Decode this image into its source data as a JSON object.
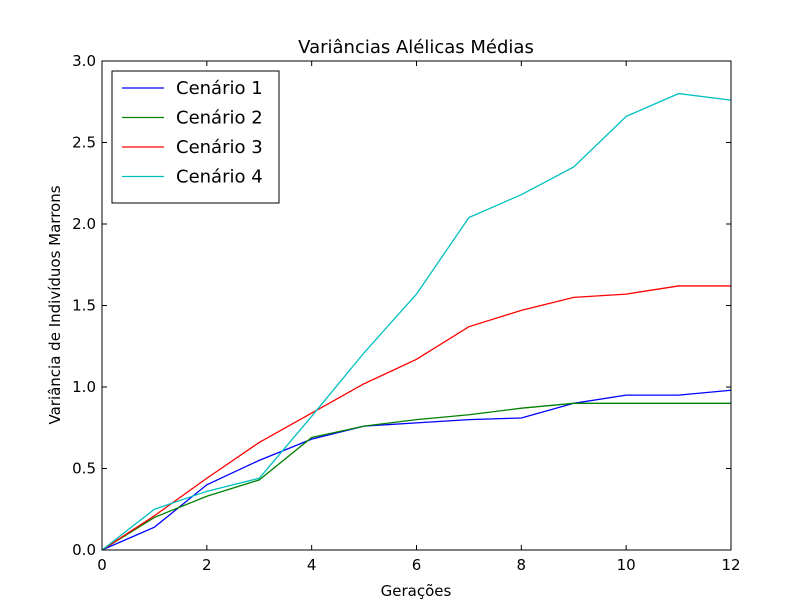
{
  "chart_data": {
    "type": "line",
    "title": "Variâncias Alélicas Médias",
    "xlabel": "Gerações",
    "ylabel": "Variância de Indivíduos Marrons",
    "xlim": [
      0,
      12
    ],
    "ylim": [
      0,
      3.0
    ],
    "xticks": [
      0,
      2,
      4,
      6,
      8,
      10,
      12
    ],
    "xtick_labels": [
      "0",
      "2",
      "4",
      "6",
      "8",
      "10",
      "12"
    ],
    "yticks": [
      0,
      0.5,
      1.0,
      1.5,
      2.0,
      2.5,
      3.0
    ],
    "ytick_labels": [
      "0.0",
      "0.5",
      "1.0",
      "1.5",
      "2.0",
      "2.5",
      "3.0"
    ],
    "grid": false,
    "legend_position": "top-left",
    "x": [
      0,
      1,
      2,
      3,
      4,
      5,
      6,
      7,
      8,
      9,
      10,
      11,
      12
    ],
    "series": [
      {
        "name": "Cenário 1",
        "color": "#0000ff",
        "values": [
          0.0,
          0.14,
          0.4,
          0.55,
          0.68,
          0.76,
          0.78,
          0.8,
          0.81,
          0.9,
          0.95,
          0.95,
          0.98
        ]
      },
      {
        "name": "Cenário 2",
        "color": "#008000",
        "values": [
          0.0,
          0.2,
          0.33,
          0.43,
          0.69,
          0.76,
          0.8,
          0.83,
          0.87,
          0.9,
          0.9,
          0.9,
          0.9
        ]
      },
      {
        "name": "Cenário 3",
        "color": "#ff0000",
        "values": [
          0.0,
          0.21,
          0.44,
          0.66,
          0.84,
          1.02,
          1.17,
          1.37,
          1.47,
          1.55,
          1.57,
          1.62,
          1.62
        ]
      },
      {
        "name": "Cenário 4",
        "color": "#00bfbf",
        "values": [
          0.0,
          0.25,
          0.36,
          0.44,
          0.82,
          1.21,
          1.57,
          2.04,
          2.18,
          2.35,
          2.66,
          2.8,
          2.76
        ]
      }
    ]
  }
}
